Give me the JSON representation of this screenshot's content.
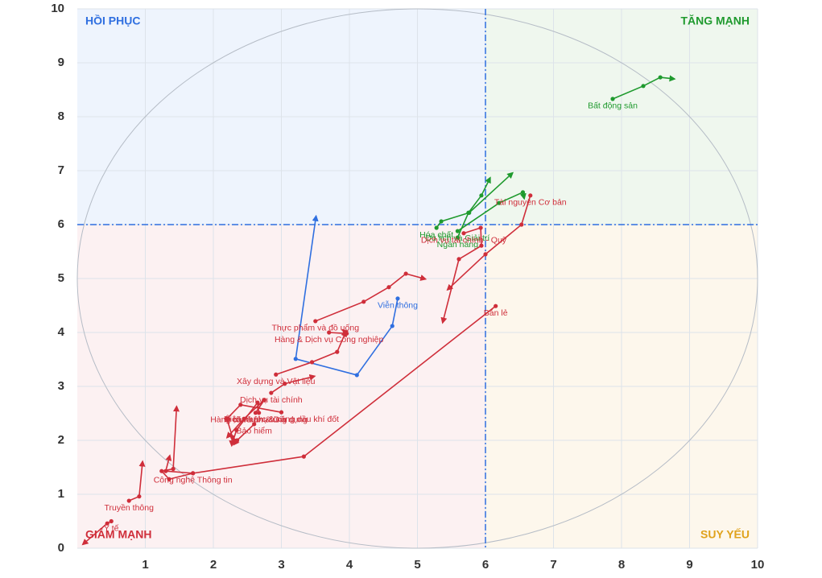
{
  "chart_data": {
    "type": "rotation",
    "xlim": [
      0,
      10
    ],
    "ylim": [
      0,
      10
    ],
    "xticks": [
      1,
      2,
      3,
      4,
      5,
      6,
      7,
      8,
      9,
      10
    ],
    "yticks": [
      0,
      1,
      2,
      3,
      4,
      5,
      6,
      7,
      8,
      9,
      10
    ],
    "grid": true,
    "reference_lines": {
      "x": 6,
      "y": 6
    },
    "quadrants": [
      {
        "label": "HỒI PHỤC",
        "color": "#2f6fe0",
        "background": "#eef4fd",
        "corner": "top-left"
      },
      {
        "label": "TĂNG MẠNH",
        "color": "#1f9a2e",
        "background": "#eff7ee",
        "corner": "top-right"
      },
      {
        "label": "GIẢM MẠNH",
        "color": "#cf2e3a",
        "background": "#fcf1f2",
        "corner": "bottom-left"
      },
      {
        "label": "SUY YẾU",
        "color": "#e0a21c",
        "background": "#fdf7ec",
        "corner": "bottom-right"
      }
    ],
    "series": [
      {
        "name": "Bất động sản",
        "color": "#1f9a2e",
        "x": [
          7.87,
          8.32,
          8.57,
          8.78
        ],
        "y": [
          8.33,
          8.57,
          8.73,
          8.7
        ]
      },
      {
        "name": "Ngân hàng",
        "color": "#1f9a2e",
        "x": [
          5.59,
          5.75,
          5.94,
          6.07
        ],
        "y": [
          5.76,
          6.22,
          6.54,
          6.87
        ]
      },
      {
        "name": "Hóa chất",
        "color": "#1f9a2e",
        "x": [
          5.28,
          5.35,
          5.76,
          6.4
        ],
        "y": [
          5.94,
          6.06,
          6.22,
          6.96
        ]
      },
      {
        "name": "Du lịch và Giải trí",
        "color": "#1f9a2e",
        "x": [
          5.59,
          6.2,
          6.55,
          6.57
        ],
        "y": [
          5.88,
          6.4,
          6.6,
          6.48
        ]
      },
      {
        "name": "Viễn thông",
        "color": "#2f6fe0",
        "x": [
          4.71,
          4.63,
          4.11,
          3.21,
          3.51
        ],
        "y": [
          4.63,
          4.12,
          3.21,
          3.51,
          6.16
        ]
      },
      {
        "name": "Dịch vụ tài chính - Quỹ",
        "color": "#cf2e3a",
        "x": [
          5.68,
          5.93,
          5.94,
          5.61,
          5.37
        ],
        "y": [
          5.84,
          5.94,
          5.61,
          5.36,
          4.18
        ]
      },
      {
        "name": "Tài nguyên Cơ bản",
        "color": "#cf2e3a",
        "x": [
          6.66,
          6.53,
          6.0,
          5.44
        ],
        "y": [
          6.54,
          6.0,
          5.45,
          4.79
        ]
      },
      {
        "name": "Bán lẻ",
        "color": "#cf2e3a",
        "x": [
          6.15,
          3.33,
          1.7,
          1.3,
          1.36
        ],
        "y": [
          4.49,
          1.7,
          1.39,
          1.43,
          1.72
        ]
      },
      {
        "name": "Thực phẩm và đồ uống",
        "color": "#cf2e3a",
        "x": [
          3.5,
          4.21,
          4.58,
          4.83,
          5.12
        ],
        "y": [
          4.21,
          4.57,
          4.84,
          5.09,
          4.99
        ]
      },
      {
        "name": "Hàng & Dịch vụ Công nghiệp",
        "color": "#cf2e3a",
        "x": [
          3.7,
          3.96,
          3.9
        ],
        "y": [
          4.0,
          3.98,
          4.05
        ]
      },
      {
        "name": "Xây dựng và Vật liệu",
        "color": "#cf2e3a",
        "x": [
          2.92,
          3.45,
          3.82,
          3.95
        ],
        "y": [
          3.22,
          3.45,
          3.64,
          4.02
        ]
      },
      {
        "name": "Dịch vụ tài chính",
        "color": "#cf2e3a",
        "x": [
          2.85,
          3.05,
          3.49
        ],
        "y": [
          2.88,
          3.05,
          3.19
        ]
      },
      {
        "name": "Điện, nước & xăng dầu khí đốt",
        "color": "#cf2e3a",
        "x": [
          3.0,
          2.4,
          2.2,
          2.28,
          2.27
        ],
        "y": [
          2.52,
          2.66,
          2.4,
          2.06,
          1.9
        ]
      },
      {
        "name": "Hàng cá nhân & Gia dụng",
        "color": "#cf2e3a",
        "x": [
          2.67,
          2.65,
          2.34,
          2.28
        ],
        "y": [
          2.51,
          2.7,
          2.19,
          1.95
        ]
      },
      {
        "name": "Ô tô và phụ tùng",
        "color": "#cf2e3a",
        "x": [
          2.62,
          2.75,
          2.45,
          2.2
        ],
        "y": [
          2.51,
          2.75,
          2.4,
          2.05
        ]
      },
      {
        "name": "Bảo hiểm",
        "color": "#cf2e3a",
        "x": [
          2.6,
          2.35,
          2.3
        ],
        "y": [
          2.3,
          2.0,
          1.92
        ]
      },
      {
        "name": "Công nghệ Thông tin",
        "color": "#cf2e3a",
        "x": [
          1.7,
          1.35,
          1.24,
          1.41,
          1.46
        ],
        "y": [
          1.39,
          1.28,
          1.43,
          1.47,
          2.63
        ]
      },
      {
        "name": "Truyền thông",
        "color": "#cf2e3a",
        "x": [
          0.76,
          0.91,
          0.96
        ],
        "y": [
          0.88,
          0.96,
          1.61
        ]
      },
      {
        "name": "Y tế",
        "color": "#cf2e3a",
        "x": [
          0.5,
          0.44,
          0.08
        ],
        "y": [
          0.5,
          0.46,
          0.07
        ]
      }
    ]
  }
}
